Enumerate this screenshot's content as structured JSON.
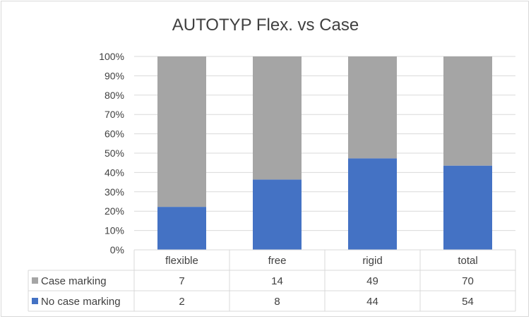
{
  "chart_data": {
    "type": "bar",
    "stacked": "percent",
    "title": "AUTOTYP Flex. vs Case",
    "categories": [
      "flexible",
      "free",
      "rigid",
      "total"
    ],
    "series": [
      {
        "name": "No case marking",
        "color": "#4472c4",
        "values": [
          2,
          8,
          44,
          54
        ]
      },
      {
        "name": "Case marking",
        "color": "#a5a5a5",
        "values": [
          7,
          14,
          49,
          70
        ]
      }
    ],
    "y_ticks": [
      "0%",
      "10%",
      "20%",
      "30%",
      "40%",
      "50%",
      "60%",
      "70%",
      "80%",
      "90%",
      "100%"
    ],
    "ylim": [
      0,
      100
    ],
    "grid": true,
    "legend": "data-table",
    "table_rows": [
      {
        "name": "Case marking",
        "color": "#a5a5a5",
        "values": [
          7,
          14,
          49,
          70
        ]
      },
      {
        "name": "No case marking",
        "color": "#4472c4",
        "values": [
          2,
          8,
          44,
          54
        ]
      }
    ]
  }
}
